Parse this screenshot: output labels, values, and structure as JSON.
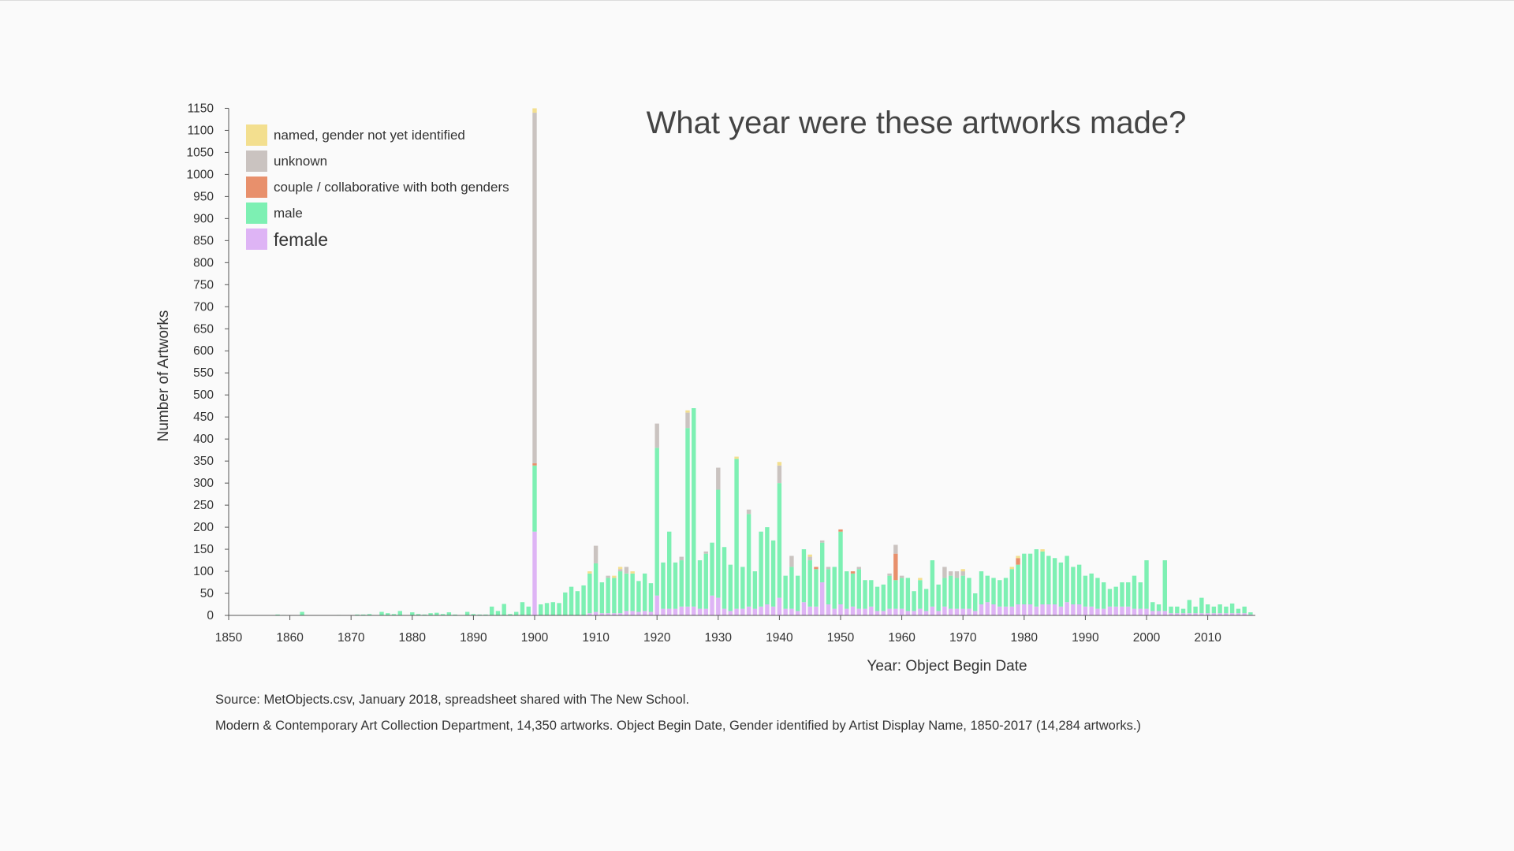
{
  "chart_data": {
    "type": "bar",
    "stacked": true,
    "title": "What year were these artworks made?",
    "xlabel": "Year: Object Begin Date",
    "ylabel": "Number of Artworks",
    "xlim": [
      1850,
      2017
    ],
    "ylim": [
      0,
      1150
    ],
    "y_ticks": [
      0,
      50,
      100,
      150,
      200,
      250,
      300,
      350,
      400,
      450,
      500,
      550,
      600,
      650,
      700,
      750,
      800,
      850,
      900,
      950,
      1000,
      1050,
      1100,
      1150
    ],
    "x_ticks": [
      1850,
      1860,
      1870,
      1880,
      1890,
      1900,
      1910,
      1920,
      1930,
      1940,
      1950,
      1960,
      1970,
      1980,
      1990,
      2000,
      2010
    ],
    "grid": false,
    "legend_position": "top-left",
    "legend": [
      {
        "key": "named",
        "label": "named, gender not yet identified",
        "color": "#f3df8f"
      },
      {
        "key": "unknown",
        "label": "unknown",
        "color": "#cac3c0"
      },
      {
        "key": "couple",
        "label": "couple / collaborative with both genders",
        "color": "#e8906c"
      },
      {
        "key": "male",
        "label": "male",
        "color": "#7df0b3"
      },
      {
        "key": "female",
        "label": "female",
        "color": "#deb4f5"
      }
    ],
    "series_order": [
      "female",
      "male",
      "couple",
      "unknown",
      "named"
    ],
    "data": [
      {
        "year": 1858,
        "male": 2
      },
      {
        "year": 1859,
        "male": 1
      },
      {
        "year": 1862,
        "male": 8
      },
      {
        "year": 1868,
        "male": 1
      },
      {
        "year": 1871,
        "male": 2
      },
      {
        "year": 1872,
        "male": 2
      },
      {
        "year": 1873,
        "male": 3
      },
      {
        "year": 1875,
        "male": 8
      },
      {
        "year": 1876,
        "male": 5
      },
      {
        "year": 1877,
        "male": 3
      },
      {
        "year": 1878,
        "male": 10
      },
      {
        "year": 1880,
        "male": 7
      },
      {
        "year": 1881,
        "male": 3
      },
      {
        "year": 1882,
        "male": 2
      },
      {
        "year": 1883,
        "male": 5
      },
      {
        "year": 1884,
        "male": 6
      },
      {
        "year": 1885,
        "male": 3
      },
      {
        "year": 1886,
        "male": 7
      },
      {
        "year": 1887,
        "male": 2
      },
      {
        "year": 1889,
        "male": 8
      },
      {
        "year": 1890,
        "male": 3
      },
      {
        "year": 1891,
        "male": 2
      },
      {
        "year": 1892,
        "male": 2
      },
      {
        "year": 1893,
        "male": 20
      },
      {
        "year": 1894,
        "male": 10
      },
      {
        "year": 1895,
        "male": 26
      },
      {
        "year": 1896,
        "male": 3
      },
      {
        "year": 1897,
        "male": 8
      },
      {
        "year": 1898,
        "male": 30
      },
      {
        "year": 1899,
        "male": 20
      },
      {
        "year": 1900,
        "female": 190,
        "male": 150,
        "couple": 5,
        "unknown": 795,
        "named": 10
      },
      {
        "year": 1901,
        "male": 25
      },
      {
        "year": 1902,
        "male": 28
      },
      {
        "year": 1903,
        "male": 30
      },
      {
        "year": 1904,
        "male": 28
      },
      {
        "year": 1905,
        "male": 52
      },
      {
        "year": 1906,
        "male": 65
      },
      {
        "year": 1907,
        "male": 55
      },
      {
        "year": 1908,
        "male": 68
      },
      {
        "year": 1909,
        "female": 5,
        "male": 90,
        "named": 5
      },
      {
        "year": 1910,
        "female": 8,
        "male": 110,
        "unknown": 40
      },
      {
        "year": 1911,
        "female": 5,
        "male": 70
      },
      {
        "year": 1912,
        "female": 5,
        "male": 80,
        "unknown": 5
      },
      {
        "year": 1913,
        "female": 5,
        "male": 80,
        "named": 5
      },
      {
        "year": 1914,
        "female": 5,
        "male": 95,
        "unknown": 5,
        "named": 5
      },
      {
        "year": 1915,
        "female": 10,
        "male": 85,
        "unknown": 15
      },
      {
        "year": 1916,
        "female": 10,
        "male": 85,
        "named": 5
      },
      {
        "year": 1917,
        "female": 8,
        "male": 70
      },
      {
        "year": 1918,
        "female": 10,
        "male": 85
      },
      {
        "year": 1919,
        "female": 8,
        "male": 65
      },
      {
        "year": 1920,
        "female": 45,
        "male": 335,
        "unknown": 55
      },
      {
        "year": 1921,
        "female": 15,
        "male": 105
      },
      {
        "year": 1922,
        "female": 15,
        "male": 175
      },
      {
        "year": 1923,
        "female": 15,
        "male": 105
      },
      {
        "year": 1924,
        "female": 20,
        "male": 105,
        "unknown": 8
      },
      {
        "year": 1925,
        "female": 20,
        "male": 405,
        "unknown": 35,
        "named": 5
      },
      {
        "year": 1926,
        "female": 20,
        "male": 450
      },
      {
        "year": 1927,
        "female": 15,
        "male": 110
      },
      {
        "year": 1928,
        "female": 15,
        "male": 125,
        "unknown": 5
      },
      {
        "year": 1929,
        "female": 45,
        "male": 120
      },
      {
        "year": 1930,
        "female": 40,
        "male": 245,
        "unknown": 50
      },
      {
        "year": 1931,
        "female": 15,
        "male": 140
      },
      {
        "year": 1932,
        "female": 10,
        "male": 105
      },
      {
        "year": 1933,
        "female": 15,
        "male": 340,
        "named": 5
      },
      {
        "year": 1934,
        "female": 15,
        "male": 95
      },
      {
        "year": 1935,
        "female": 20,
        "male": 210,
        "unknown": 10
      },
      {
        "year": 1936,
        "female": 15,
        "male": 85
      },
      {
        "year": 1937,
        "female": 20,
        "male": 170
      },
      {
        "year": 1938,
        "female": 25,
        "male": 175
      },
      {
        "year": 1939,
        "female": 20,
        "male": 150
      },
      {
        "year": 1940,
        "female": 40,
        "male": 260,
        "unknown": 40,
        "named": 8
      },
      {
        "year": 1941,
        "female": 15,
        "male": 75
      },
      {
        "year": 1942,
        "female": 15,
        "male": 95,
        "unknown": 25
      },
      {
        "year": 1943,
        "female": 10,
        "male": 80
      },
      {
        "year": 1944,
        "female": 30,
        "male": 120
      },
      {
        "year": 1945,
        "female": 20,
        "male": 105,
        "unknown": 8,
        "named": 5
      },
      {
        "year": 1946,
        "female": 20,
        "male": 85,
        "couple": 5
      },
      {
        "year": 1947,
        "female": 75,
        "male": 90,
        "unknown": 5
      },
      {
        "year": 1948,
        "female": 25,
        "male": 80,
        "unknown": 5
      },
      {
        "year": 1949,
        "female": 15,
        "male": 95
      },
      {
        "year": 1950,
        "female": 25,
        "male": 165,
        "couple": 5
      },
      {
        "year": 1951,
        "female": 15,
        "male": 85
      },
      {
        "year": 1952,
        "female": 20,
        "male": 75,
        "couple": 5
      },
      {
        "year": 1953,
        "female": 15,
        "male": 90,
        "unknown": 5
      },
      {
        "year": 1954,
        "female": 15,
        "male": 65
      },
      {
        "year": 1955,
        "female": 20,
        "male": 60
      },
      {
        "year": 1956,
        "female": 10,
        "male": 55
      },
      {
        "year": 1957,
        "female": 10,
        "male": 60
      },
      {
        "year": 1958,
        "female": 15,
        "male": 75,
        "unknown": 5
      },
      {
        "year": 1959,
        "female": 15,
        "male": 65,
        "couple": 60,
        "unknown": 20
      },
      {
        "year": 1960,
        "female": 15,
        "male": 70,
        "unknown": 5
      },
      {
        "year": 1961,
        "female": 10,
        "male": 75
      },
      {
        "year": 1962,
        "female": 10,
        "male": 45
      },
      {
        "year": 1963,
        "female": 15,
        "male": 65,
        "named": 5
      },
      {
        "year": 1964,
        "female": 10,
        "male": 50
      },
      {
        "year": 1965,
        "female": 20,
        "male": 105
      },
      {
        "year": 1966,
        "female": 10,
        "male": 60
      },
      {
        "year": 1967,
        "female": 20,
        "male": 65,
        "unknown": 25
      },
      {
        "year": 1968,
        "female": 15,
        "male": 75,
        "unknown": 10
      },
      {
        "year": 1969,
        "female": 15,
        "male": 70,
        "unknown": 15
      },
      {
        "year": 1970,
        "female": 15,
        "male": 75,
        "unknown": 10,
        "named": 5
      },
      {
        "year": 1971,
        "female": 15,
        "male": 70
      },
      {
        "year": 1972,
        "female": 10,
        "male": 40
      },
      {
        "year": 1973,
        "female": 25,
        "male": 75
      },
      {
        "year": 1974,
        "female": 30,
        "male": 60
      },
      {
        "year": 1975,
        "female": 25,
        "male": 60
      },
      {
        "year": 1976,
        "female": 20,
        "male": 60
      },
      {
        "year": 1977,
        "female": 20,
        "male": 65
      },
      {
        "year": 1978,
        "female": 20,
        "male": 85,
        "named": 5
      },
      {
        "year": 1979,
        "female": 25,
        "male": 90,
        "couple": 15,
        "named": 5
      },
      {
        "year": 1980,
        "female": 25,
        "male": 115
      },
      {
        "year": 1981,
        "female": 25,
        "male": 115
      },
      {
        "year": 1982,
        "female": 20,
        "male": 130
      },
      {
        "year": 1983,
        "female": 25,
        "male": 120,
        "named": 5
      },
      {
        "year": 1984,
        "female": 25,
        "male": 110
      },
      {
        "year": 1985,
        "female": 25,
        "male": 105
      },
      {
        "year": 1986,
        "female": 20,
        "male": 100
      },
      {
        "year": 1987,
        "female": 30,
        "male": 105
      },
      {
        "year": 1988,
        "female": 25,
        "male": 85
      },
      {
        "year": 1989,
        "female": 25,
        "male": 90
      },
      {
        "year": 1990,
        "female": 20,
        "male": 70
      },
      {
        "year": 1991,
        "female": 20,
        "male": 75
      },
      {
        "year": 1992,
        "female": 15,
        "male": 70
      },
      {
        "year": 1993,
        "female": 15,
        "male": 60
      },
      {
        "year": 1994,
        "female": 20,
        "male": 40
      },
      {
        "year": 1995,
        "female": 20,
        "male": 45
      },
      {
        "year": 1996,
        "female": 20,
        "male": 55
      },
      {
        "year": 1997,
        "female": 20,
        "male": 55
      },
      {
        "year": 1998,
        "female": 15,
        "male": 75
      },
      {
        "year": 1999,
        "female": 15,
        "male": 60
      },
      {
        "year": 2000,
        "female": 15,
        "male": 110
      },
      {
        "year": 2001,
        "female": 10,
        "male": 20
      },
      {
        "year": 2002,
        "female": 10,
        "male": 15
      },
      {
        "year": 2003,
        "female": 10,
        "male": 115
      },
      {
        "year": 2004,
        "female": 5,
        "male": 15
      },
      {
        "year": 2005,
        "female": 5,
        "male": 15
      },
      {
        "year": 2006,
        "female": 5,
        "male": 10
      },
      {
        "year": 2007,
        "female": 5,
        "male": 30
      },
      {
        "year": 2008,
        "female": 5,
        "male": 15
      },
      {
        "year": 2009,
        "female": 5,
        "male": 35
      },
      {
        "year": 2010,
        "female": 5,
        "male": 20
      },
      {
        "year": 2011,
        "female": 5,
        "male": 15
      },
      {
        "year": 2012,
        "female": 5,
        "male": 20
      },
      {
        "year": 2013,
        "female": 5,
        "male": 15
      },
      {
        "year": 2014,
        "female": 5,
        "male": 22
      },
      {
        "year": 2015,
        "female": 5,
        "male": 10
      },
      {
        "year": 2016,
        "female": 5,
        "male": 15
      },
      {
        "year": 2017,
        "female": 2,
        "male": 5
      }
    ]
  },
  "footnotes": {
    "source": "Source: MetObjects.csv, January 2018, spreadsheet shared with The New School.",
    "details": "Modern & Contemporary Art Collection Department, 14,350 artworks. Object Begin Date, Gender identified by Artist Display Name, 1850-2017 (14,284 artworks.)"
  }
}
